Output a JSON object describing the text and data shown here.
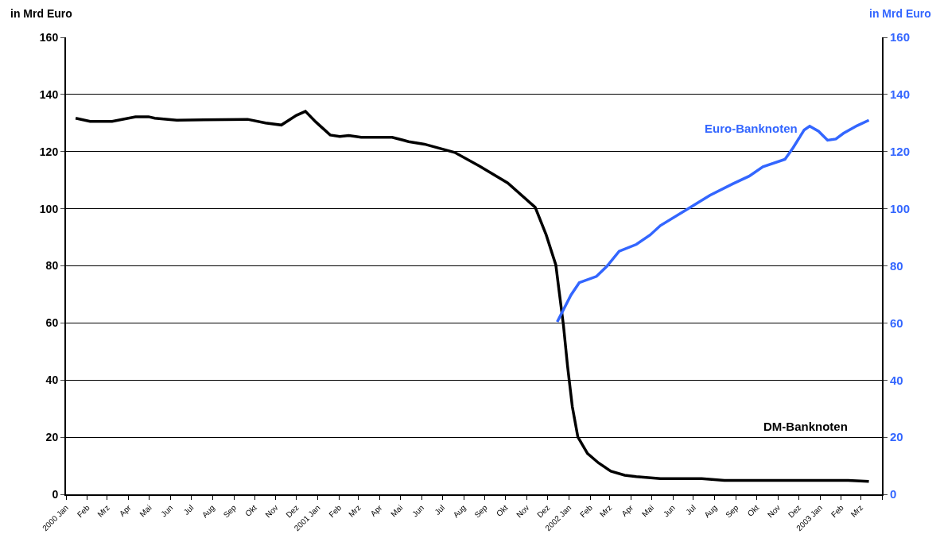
{
  "chart_data": {
    "type": "line",
    "ylabel": "in Mrd Euro",
    "y2label": "in Mrd Euro",
    "xlim": [
      "2000-01-01",
      "2003-04-01"
    ],
    "xticks": [
      {
        "value": "2000-01-01",
        "label": "2000 Jan"
      },
      {
        "value": "2000-02-01",
        "label": "Feb"
      },
      {
        "value": "2000-03-01",
        "label": "Mrz"
      },
      {
        "value": "2000-04-01",
        "label": "Apr"
      },
      {
        "value": "2000-05-01",
        "label": "Mai"
      },
      {
        "value": "2000-06-01",
        "label": "Jun"
      },
      {
        "value": "2000-07-01",
        "label": "Jul"
      },
      {
        "value": "2000-08-01",
        "label": "Aug"
      },
      {
        "value": "2000-09-01",
        "label": "Sep"
      },
      {
        "value": "2000-10-01",
        "label": "Okt"
      },
      {
        "value": "2000-11-01",
        "label": "Nov"
      },
      {
        "value": "2000-12-01",
        "label": "Dez"
      },
      {
        "value": "2001-01-01",
        "label": "2001 Jan"
      },
      {
        "value": "2001-02-01",
        "label": "Feb"
      },
      {
        "value": "2001-03-01",
        "label": "Mrz"
      },
      {
        "value": "2001-04-01",
        "label": "Apr"
      },
      {
        "value": "2001-05-01",
        "label": "Mai"
      },
      {
        "value": "2001-06-01",
        "label": "Jun"
      },
      {
        "value": "2001-07-01",
        "label": "Jul"
      },
      {
        "value": "2001-08-01",
        "label": "Aug"
      },
      {
        "value": "2001-09-01",
        "label": "Sep"
      },
      {
        "value": "2001-10-01",
        "label": "Okt"
      },
      {
        "value": "2001-11-01",
        "label": "Nov"
      },
      {
        "value": "2001-12-01",
        "label": "Dez"
      },
      {
        "value": "2002-01-01",
        "label": "2002 Jan"
      },
      {
        "value": "2002-02-01",
        "label": "Feb"
      },
      {
        "value": "2002-03-01",
        "label": "Mrz"
      },
      {
        "value": "2002-04-01",
        "label": "Apr"
      },
      {
        "value": "2002-05-01",
        "label": "Mai"
      },
      {
        "value": "2002-06-01",
        "label": "Jun"
      },
      {
        "value": "2002-07-01",
        "label": "Jul"
      },
      {
        "value": "2002-08-01",
        "label": "Aug"
      },
      {
        "value": "2002-09-01",
        "label": "Sep"
      },
      {
        "value": "2002-10-01",
        "label": "Okt"
      },
      {
        "value": "2002-11-01",
        "label": "Nov"
      },
      {
        "value": "2002-12-01",
        "label": "Dez"
      },
      {
        "value": "2003-01-01",
        "label": "2003 Jan"
      },
      {
        "value": "2003-02-01",
        "label": "Feb"
      },
      {
        "value": "2003-03-01",
        "label": "Mrz"
      },
      {
        "value": "2003-04-01",
        "label": null
      }
    ],
    "ylim": [
      0,
      160
    ],
    "yticks": [
      0,
      20,
      40,
      60,
      80,
      100,
      120,
      140,
      160
    ],
    "y2lim": [
      0,
      160
    ],
    "y2ticks": [
      0,
      20,
      40,
      60,
      80,
      100,
      120,
      140,
      160
    ],
    "grid": "y",
    "legend": false,
    "marker": "none",
    "line_style": "solid",
    "series": [
      {
        "name": "DM-Banknoten",
        "color": "#000000",
        "x": [
          "2000-01-15",
          "2000-02-05",
          "2000-03-08",
          "2000-04-11",
          "2000-04-30",
          "2000-05-09",
          "2000-06-10",
          "2000-09-21",
          "2000-10-17",
          "2000-11-09",
          "2000-12-01",
          "2000-12-14",
          "2000-12-29",
          "2001-01-19",
          "2001-02-02",
          "2001-02-15",
          "2001-03-05",
          "2001-04-19",
          "2001-05-13",
          "2001-06-05",
          "2001-07-19",
          "2001-08-24",
          "2001-10-04",
          "2001-11-13",
          "2001-11-29",
          "2001-12-13",
          "2001-12-18",
          "2001-12-24",
          "2001-12-30",
          "2002-01-06",
          "2002-01-14",
          "2002-01-28",
          "2002-02-13",
          "2002-03-03",
          "2002-03-23",
          "2002-04-09",
          "2002-05-14",
          "2002-07-13",
          "2002-08-15",
          "2003-02-11",
          "2003-03-13"
        ],
        "values": [
          131.7,
          130.6,
          130.6,
          132.2,
          132.2,
          131.7,
          131.0,
          131.3,
          130.0,
          129.3,
          132.7,
          134.1,
          130.4,
          125.8,
          125.3,
          125.6,
          125.0,
          125.0,
          123.5,
          122.6,
          119.7,
          114.9,
          109.0,
          100.5,
          90.8,
          80.3,
          70.7,
          59.3,
          44.9,
          30.6,
          20.1,
          14.3,
          11.0,
          8.1,
          6.7,
          6.2,
          5.5,
          5.5,
          4.9,
          4.9,
          4.5
        ]
      },
      {
        "name": "Euro-Banknoten",
        "color": "#3366ff",
        "axis": "y2",
        "x": [
          "2001-12-15",
          "2002-01-04",
          "2002-01-16",
          "2002-02-10",
          "2002-02-25",
          "2002-03-15",
          "2002-04-09",
          "2002-04-29",
          "2002-05-14",
          "2002-07-02",
          "2002-07-25",
          "2002-08-27",
          "2002-09-20",
          "2002-10-10",
          "2002-11-11",
          "2002-11-23",
          "2002-12-09",
          "2002-12-17",
          "2002-12-30",
          "2003-01-12",
          "2003-01-24",
          "2003-02-04",
          "2003-02-24",
          "2003-03-13"
        ],
        "values": [
          60.4,
          69.8,
          74.1,
          76.3,
          79.8,
          85.1,
          87.5,
          90.8,
          94.1,
          101.3,
          104.7,
          108.7,
          111.4,
          114.7,
          117.3,
          121.4,
          127.6,
          128.9,
          127.1,
          124.0,
          124.4,
          126.4,
          129.1,
          131.0
        ]
      }
    ]
  }
}
